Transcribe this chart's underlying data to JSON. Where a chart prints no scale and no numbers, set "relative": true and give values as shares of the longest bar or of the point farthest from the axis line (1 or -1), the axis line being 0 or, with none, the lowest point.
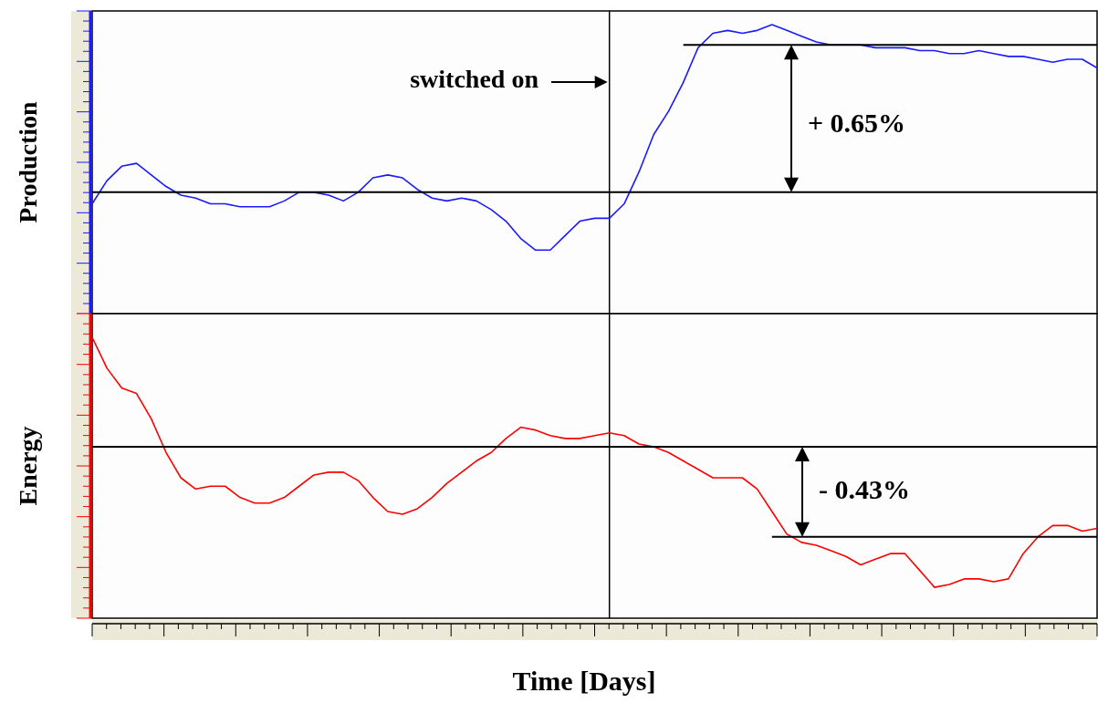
{
  "chart_data": [
    {
      "type": "line",
      "ylabel": "Production",
      "relative": true,
      "categories": [
        null,
        null,
        null,
        null,
        null,
        null,
        null,
        null,
        null,
        null,
        null,
        null,
        null,
        null,
        null,
        null,
        null,
        null,
        null,
        null,
        null,
        null,
        null,
        null,
        null,
        null,
        null,
        null,
        null,
        null,
        null,
        null,
        null,
        null,
        null,
        null,
        null,
        null,
        null,
        null,
        null,
        null,
        null,
        null,
        null,
        null,
        null,
        null,
        null,
        null,
        null,
        null,
        null,
        null,
        null,
        null,
        null,
        null,
        null,
        null,
        null,
        null,
        null,
        null,
        null,
        null,
        null,
        null,
        null
      ],
      "series": [
        {
          "color": "#1a1aff",
          "values": [
            0.38,
            0.46,
            0.51,
            0.52,
            0.48,
            0.44,
            0.41,
            0.4,
            0.38,
            0.38,
            0.37,
            0.37,
            0.37,
            0.39,
            0.42,
            0.42,
            0.41,
            0.39,
            0.42,
            0.47,
            0.48,
            0.47,
            0.43,
            0.4,
            0.39,
            0.4,
            0.39,
            0.36,
            0.32,
            0.26,
            0.22,
            0.22,
            0.27,
            0.32,
            0.33,
            0.33,
            0.38,
            0.49,
            0.62,
            0.7,
            0.8,
            0.92,
            0.97,
            0.98,
            0.97,
            0.98,
            1,
            0.98,
            0.96,
            0.94,
            0.93,
            0.93,
            0.93,
            0.92,
            0.92,
            0.92,
            0.91,
            0.91,
            0.9,
            0.9,
            0.91,
            0.9,
            0.89,
            0.89,
            0.88,
            0.87,
            0.88,
            0.88,
            0.85
          ]
        },
        {
          "color": "#000000",
          "values": [
            0.42,
            0.42,
            0.42,
            0.42,
            0.42,
            0.42,
            0.42,
            0.42,
            0.42,
            0.42,
            0.42,
            0.42,
            0.42,
            0.42,
            0.42,
            0.42,
            0.42,
            0.42,
            0.42,
            0.42,
            0.42,
            0.42,
            0.42,
            0.42,
            0.42,
            0.42,
            0.42,
            0.42,
            0.42,
            0.42,
            0.42,
            0.42,
            0.42,
            0.42,
            0.42,
            0.42,
            0.42,
            0.42,
            0.42,
            0.42,
            0.42,
            0.42,
            0.42,
            0.42,
            0.42,
            0.42,
            0.42,
            0.42,
            0.42,
            0.42,
            0.42,
            0.42,
            0.42,
            0.42,
            0.42,
            0.42,
            0.42,
            0.42,
            0.42,
            0.42,
            0.42,
            0.42,
            0.42,
            0.42,
            0.42,
            0.42,
            0.42,
            0.42,
            0.42
          ]
        },
        {
          "color": "#000000",
          "values": [
            null,
            null,
            null,
            null,
            null,
            null,
            null,
            null,
            null,
            null,
            null,
            null,
            null,
            null,
            null,
            null,
            null,
            null,
            null,
            null,
            null,
            null,
            null,
            null,
            null,
            null,
            null,
            null,
            null,
            null,
            null,
            null,
            null,
            null,
            null,
            null,
            null,
            null,
            null,
            null,
            0.93,
            0.93,
            0.93,
            0.93,
            0.93,
            0.93,
            0.93,
            0.93,
            0.93,
            0.93,
            0.93,
            0.93,
            0.93,
            0.93,
            0.93,
            0.93,
            0.93,
            0.93,
            0.93,
            0.93,
            0.93,
            0.93,
            0.93,
            0.93,
            0.93,
            0.93,
            0.93,
            0.93,
            0.93
          ]
        }
      ],
      "annotations": [
        "switched on",
        "+ 0.65%"
      ]
    },
    {
      "type": "line",
      "ylabel": "Energy",
      "xlabel": "Time [Days]",
      "relative": true,
      "categories": [
        null,
        null,
        null,
        null,
        null,
        null,
        null,
        null,
        null,
        null,
        null,
        null,
        null,
        null,
        null,
        null,
        null,
        null,
        null,
        null,
        null,
        null,
        null,
        null,
        null,
        null,
        null,
        null,
        null,
        null,
        null,
        null,
        null,
        null,
        null,
        null,
        null,
        null,
        null,
        null,
        null,
        null,
        null,
        null,
        null,
        null,
        null,
        null,
        null,
        null,
        null,
        null,
        null,
        null,
        null,
        null,
        null,
        null,
        null,
        null,
        null,
        null,
        null,
        null,
        null,
        null,
        null,
        null,
        null
      ],
      "series": [
        {
          "color": "#ff0000",
          "values": [
            1,
            0.89,
            0.82,
            0.8,
            0.71,
            0.59,
            0.5,
            0.46,
            0.47,
            0.47,
            0.43,
            0.41,
            0.41,
            0.43,
            0.47,
            0.51,
            0.52,
            0.52,
            0.49,
            0.43,
            0.38,
            0.37,
            0.39,
            0.43,
            0.48,
            0.52,
            0.56,
            0.59,
            0.64,
            0.68,
            0.67,
            0.65,
            0.64,
            0.64,
            0.65,
            0.66,
            0.65,
            0.62,
            0.61,
            0.59,
            0.56,
            0.53,
            0.5,
            0.5,
            0.5,
            0.46,
            0.38,
            0.3,
            0.27,
            0.26,
            0.24,
            0.22,
            0.19,
            0.21,
            0.23,
            0.23,
            0.17,
            0.11,
            0.12,
            0.14,
            0.14,
            0.13,
            0.14,
            0.23,
            0.29,
            0.33,
            0.33,
            0.31,
            0.32
          ]
        },
        {
          "color": "#000000",
          "values": [
            0.61,
            0.61,
            0.61,
            0.61,
            0.61,
            0.61,
            0.61,
            0.61,
            0.61,
            0.61,
            0.61,
            0.61,
            0.61,
            0.61,
            0.61,
            0.61,
            0.61,
            0.61,
            0.61,
            0.61,
            0.61,
            0.61,
            0.61,
            0.61,
            0.61,
            0.61,
            0.61,
            0.61,
            0.61,
            0.61,
            0.61,
            0.61,
            0.61,
            0.61,
            0.61,
            0.61,
            0.61,
            0.61,
            0.61,
            0.61,
            0.61,
            0.61,
            0.61,
            0.61,
            0.61,
            0.61,
            0.61,
            0.61,
            0.61,
            0.61,
            0.61,
            0.61,
            0.61,
            0.61,
            0.61,
            0.61,
            0.61,
            0.61,
            0.61,
            0.61,
            0.61,
            0.61,
            0.61,
            0.61,
            0.61,
            0.61,
            0.61,
            0.61,
            0.61
          ]
        },
        {
          "color": "#000000",
          "values": [
            null,
            null,
            null,
            null,
            null,
            null,
            null,
            null,
            null,
            null,
            null,
            null,
            null,
            null,
            null,
            null,
            null,
            null,
            null,
            null,
            null,
            null,
            null,
            null,
            null,
            null,
            null,
            null,
            null,
            null,
            null,
            null,
            null,
            null,
            null,
            null,
            null,
            null,
            null,
            null,
            null,
            null,
            null,
            null,
            null,
            null,
            0.29,
            0.29,
            0.29,
            0.29,
            0.29,
            0.29,
            0.29,
            0.29,
            0.29,
            0.29,
            0.29,
            0.29,
            0.29,
            0.29,
            0.29,
            0.29,
            0.29,
            0.29,
            0.29,
            0.29,
            0.29,
            0.29,
            0.29
          ]
        }
      ],
      "annotations": [
        "- 0.43%"
      ]
    }
  ]
}
